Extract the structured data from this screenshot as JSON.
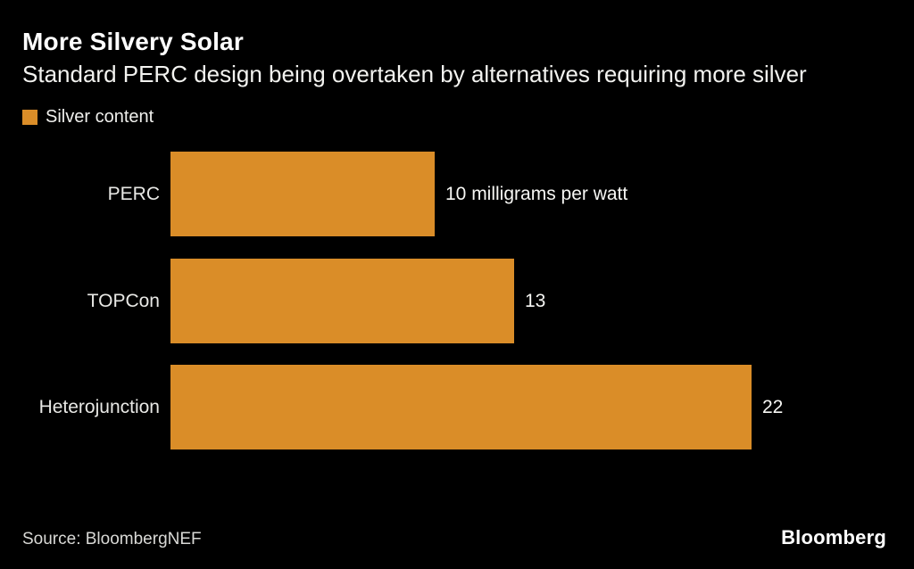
{
  "header": {
    "title": "More Silvery Solar",
    "subtitle": "Standard PERC design being overtaken by alternatives requiring more silver"
  },
  "legend": {
    "label": "Silver content",
    "swatch_color": "#DA8D28"
  },
  "chart_data": {
    "type": "bar",
    "orientation": "horizontal",
    "title": "More Silvery Solar",
    "subtitle": "Standard PERC design being overtaken by alternatives requiring more silver",
    "series_name": "Silver content",
    "categories": [
      "PERC",
      "TOPCon",
      "Heterojunction"
    ],
    "values": [
      10,
      13,
      22
    ],
    "value_labels": [
      "10 milligrams per watt",
      "13",
      "22"
    ],
    "unit": "milligrams per watt",
    "bar_color": "#DA8D28",
    "xlim": [
      0,
      22
    ],
    "grid": false,
    "legend_position": "top-left"
  },
  "footer": {
    "source": "Source: BloombergNEF",
    "brand": "Bloomberg"
  }
}
